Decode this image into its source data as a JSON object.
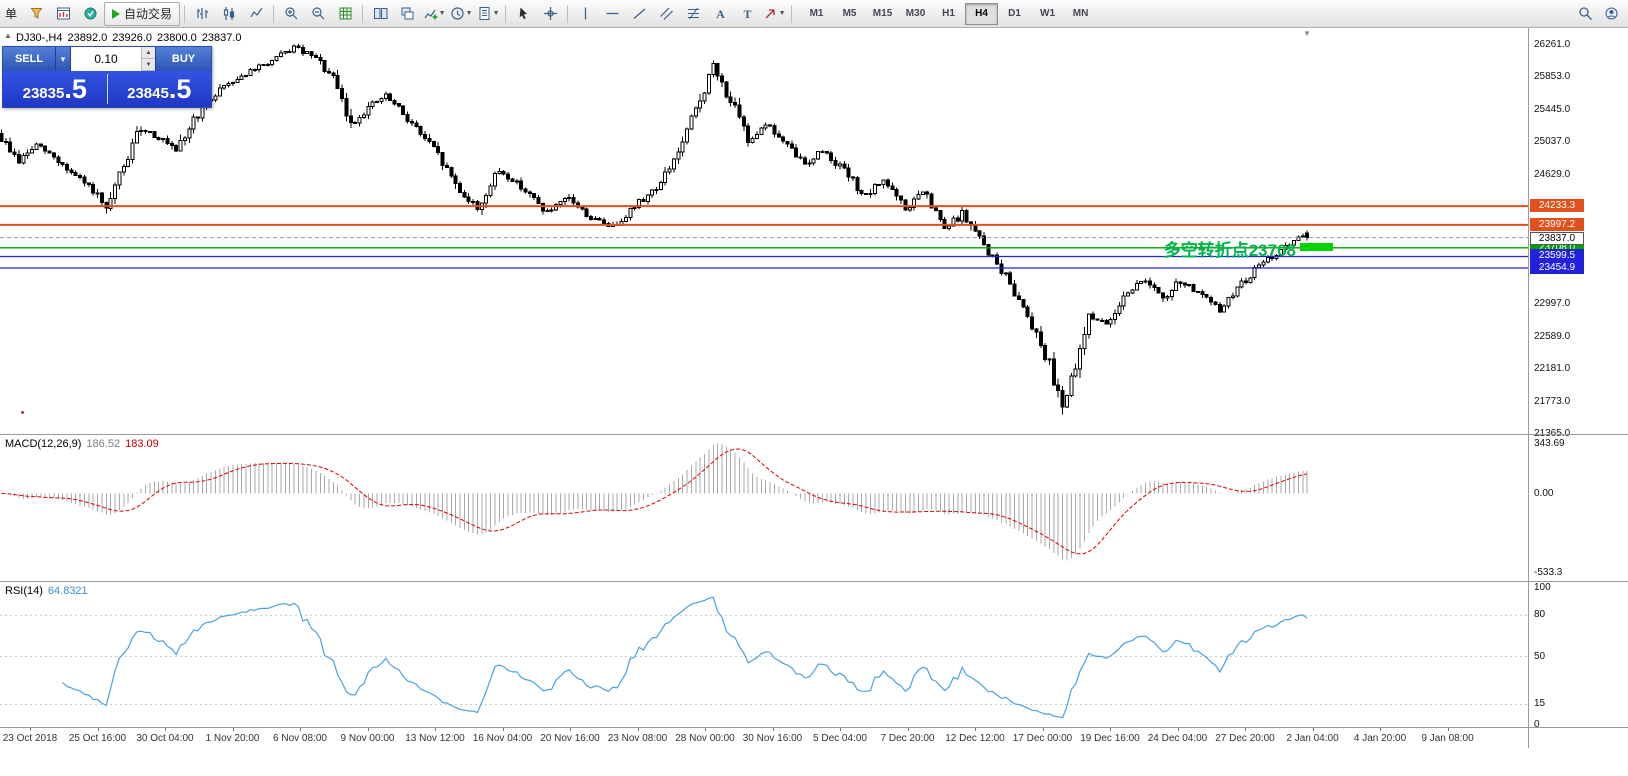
{
  "toolbar": {
    "menu_label": "单",
    "autotrade_label": "自动交易",
    "icons": [
      "new-order-icon",
      "chart-window-icon",
      "market-watch-icon",
      "autotrade-play-icon",
      "bar-chart-icon",
      "candlestick-icon",
      "line-chart-icon",
      "zoom-in-icon",
      "zoom-out-icon",
      "indicators-grid-icon",
      "tile-windows-icon",
      "cascade-windows-icon",
      "add-indicator-icon",
      "periods-clock-icon",
      "templates-icon",
      "cursor-icon",
      "crosshair-icon",
      "vertical-line-icon",
      "horizontal-line-icon",
      "trendline-icon",
      "channel-icon",
      "fibonacci-icon",
      "text-icon",
      "label-icon",
      "arrows-icon",
      "search-icon",
      "community-icon"
    ],
    "timeframes": [
      "M1",
      "M5",
      "M15",
      "M30",
      "H1",
      "H4",
      "D1",
      "W1",
      "MN"
    ],
    "active_timeframe": "H4"
  },
  "symbol_header": {
    "symbol": "DJ30-,H4",
    "open": "23892.0",
    "high": "23926.0",
    "low": "23800.0",
    "close": "23837.0"
  },
  "trade_panel": {
    "sell_label": "SELL",
    "buy_label": "BUY",
    "volume": "0.10",
    "sell_price": "23835.5",
    "sell_price_main": "23835",
    "sell_price_frac": ".5",
    "buy_price": "23845.5",
    "buy_price_main": "23845",
    "buy_price_frac": ".5"
  },
  "annotation": {
    "text": "多空转折点23708",
    "text_color": "#00b44a",
    "marker_color": "#00d400"
  },
  "indicators": {
    "macd": {
      "label": "MACD(12,26,9)",
      "value_main": "186.52",
      "value_signal": "183.09",
      "axis_max": "343.69",
      "axis_zero": "0.00",
      "axis_min": "-533.3"
    },
    "rsi": {
      "label": "RSI(14)",
      "value": "64.8321"
    }
  },
  "chart_data": [
    {
      "type": "candlestick",
      "title": "DJ30-,H4",
      "ohlc_header": {
        "open": 23892.0,
        "high": 23926.0,
        "low": 23800.0,
        "close": 23837.0
      },
      "price_axis_ticks": [
        26261.0,
        25853.0,
        25445.0,
        25037.0,
        24629.0,
        22997.0,
        22589.0,
        22181.0,
        21773.0,
        21365.0
      ],
      "price_range_visible": [
        21365.0,
        26475.0
      ],
      "bars_visible": 300,
      "trend_anchors": [
        [
          0,
          25150
        ],
        [
          5,
          24800
        ],
        [
          9,
          25000
        ],
        [
          13,
          24850
        ],
        [
          17,
          24650
        ],
        [
          22,
          24430
        ],
        [
          25,
          24150
        ],
        [
          28,
          24600
        ],
        [
          33,
          25230
        ],
        [
          38,
          25060
        ],
        [
          41,
          24900
        ],
        [
          45,
          25320
        ],
        [
          51,
          25720
        ],
        [
          57,
          25900
        ],
        [
          63,
          26060
        ],
        [
          68,
          26230
        ],
        [
          73,
          26090
        ],
        [
          77,
          25830
        ],
        [
          81,
          25250
        ],
        [
          85,
          25480
        ],
        [
          89,
          25620
        ],
        [
          94,
          25340
        ],
        [
          100,
          24950
        ],
        [
          106,
          24430
        ],
        [
          110,
          24200
        ],
        [
          115,
          24680
        ],
        [
          120,
          24480
        ],
        [
          126,
          24150
        ],
        [
          131,
          24330
        ],
        [
          136,
          24080
        ],
        [
          141,
          23980
        ],
        [
          147,
          24280
        ],
        [
          152,
          24520
        ],
        [
          157,
          25020
        ],
        [
          161,
          25580
        ],
        [
          164,
          25980
        ],
        [
          168,
          25560
        ],
        [
          172,
          25060
        ],
        [
          176,
          25280
        ],
        [
          180,
          25040
        ],
        [
          185,
          24760
        ],
        [
          189,
          24940
        ],
        [
          194,
          24680
        ],
        [
          199,
          24340
        ],
        [
          203,
          24580
        ],
        [
          208,
          24180
        ],
        [
          212,
          24420
        ],
        [
          217,
          23940
        ],
        [
          221,
          24140
        ],
        [
          226,
          23740
        ],
        [
          231,
          23340
        ],
        [
          236,
          22880
        ],
        [
          240,
          22380
        ],
        [
          244,
          21760
        ],
        [
          247,
          22150
        ],
        [
          250,
          22880
        ],
        [
          254,
          22730
        ],
        [
          258,
          23120
        ],
        [
          263,
          23320
        ],
        [
          267,
          23040
        ],
        [
          271,
          23300
        ],
        [
          275,
          23140
        ],
        [
          280,
          22920
        ],
        [
          284,
          23200
        ],
        [
          289,
          23480
        ],
        [
          293,
          23640
        ],
        [
          297,
          23790
        ],
        [
          299,
          23840
        ]
      ],
      "horizontal_lines": [
        {
          "price": 24233.3,
          "label": "24233.3",
          "color": "#e2511b",
          "width": 2
        },
        {
          "price": 23997.2,
          "label": "23997.2",
          "color": "#e2511b",
          "width": 2
        },
        {
          "price": 23708.0,
          "label": "23708.0",
          "color": "#00a000",
          "width": 1.3
        },
        {
          "price": 23599.5,
          "label": "23599.5",
          "color": "#2222dd",
          "width": 1.3
        },
        {
          "price": 23454.9,
          "label": "23454.9",
          "color": "#2222dd",
          "width": 1.3
        }
      ],
      "current_price": {
        "value": 23837.0,
        "label": "23837.0"
      },
      "x_labels": [
        "23 Oct 2018",
        "25 Oct 16:00",
        "30 Oct 04:00",
        "1 Nov 20:00",
        "6 Nov 08:00",
        "9 Nov 00:00",
        "13 Nov 12:00",
        "16 Nov 04:00",
        "20 Nov 16:00",
        "23 Nov 08:00",
        "28 Nov 00:00",
        "30 Nov 16:00",
        "5 Dec 04:00",
        "7 Dec 20:00",
        "12 Dec 12:00",
        "17 Dec 00:00",
        "19 Dec 16:00",
        "24 Dec 04:00",
        "27 Dec 20:00",
        "2 Jan 04:00",
        "4 Jan 20:00",
        "9 Jan 08:00"
      ]
    },
    {
      "type": "macd",
      "params": [
        12,
        26,
        9
      ],
      "last_main": 186.52,
      "last_signal": 183.09,
      "axis": [
        343.69,
        0.0,
        -533.3
      ]
    },
    {
      "type": "rsi",
      "period": 14,
      "last_value": 64.8321,
      "axis_ticks": [
        100,
        80,
        50,
        15,
        0
      ],
      "levels": [
        80,
        50,
        15
      ]
    }
  ]
}
